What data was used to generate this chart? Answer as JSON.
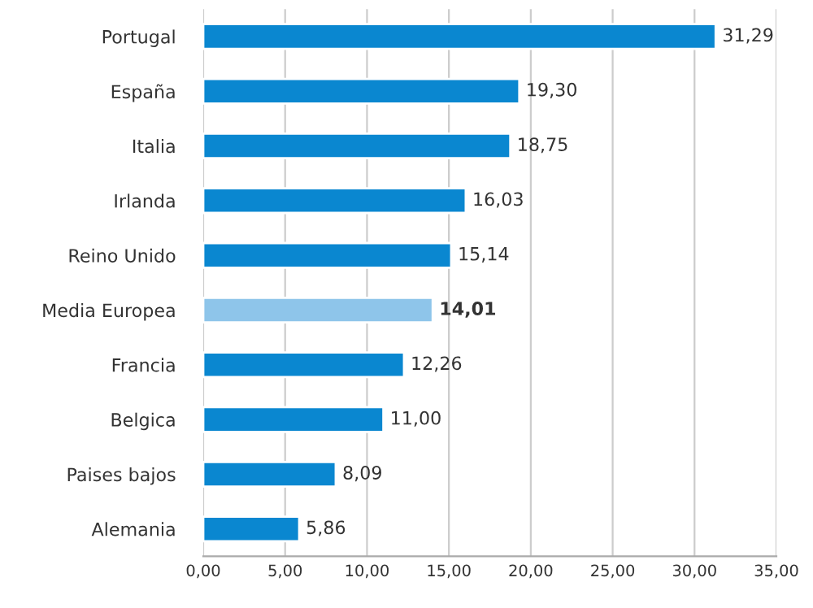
{
  "chart_data": {
    "type": "bar",
    "orientation": "horizontal",
    "categories": [
      "Portugal",
      "España",
      "Italia",
      "Irlanda",
      "Reino Unido",
      "Media Europea",
      "Francia",
      "Belgica",
      "Paises bajos",
      "Alemania"
    ],
    "values": [
      31.29,
      19.3,
      18.75,
      16.03,
      15.14,
      14.01,
      12.26,
      11.0,
      8.09,
      5.86
    ],
    "colors": [
      "#0a87d0",
      "#0a87d0",
      "#0a87d0",
      "#0a87d0",
      "#0a87d0",
      "#8ec5ea",
      "#0a87d0",
      "#0a87d0",
      "#0a87d0",
      "#0a87d0"
    ],
    "value_labels": [
      "31,29",
      "19,30",
      "18,75",
      "16,03",
      "15,14",
      "14,01",
      "12,26",
      "11,00",
      "8,09",
      "5,86"
    ],
    "xlim": [
      0,
      35
    ],
    "xticks": [
      {
        "value": 0,
        "label": "0,00"
      },
      {
        "value": 5,
        "label": "5,00"
      },
      {
        "value": 10,
        "label": "10,00"
      },
      {
        "value": 15,
        "label": "15,00"
      },
      {
        "value": 20,
        "label": "20,00"
      },
      {
        "value": 25,
        "label": "25,00"
      },
      {
        "value": 30,
        "label": "30,00"
      },
      {
        "value": 35,
        "label": "35,00"
      }
    ],
    "grid": "x",
    "legend": false
  }
}
